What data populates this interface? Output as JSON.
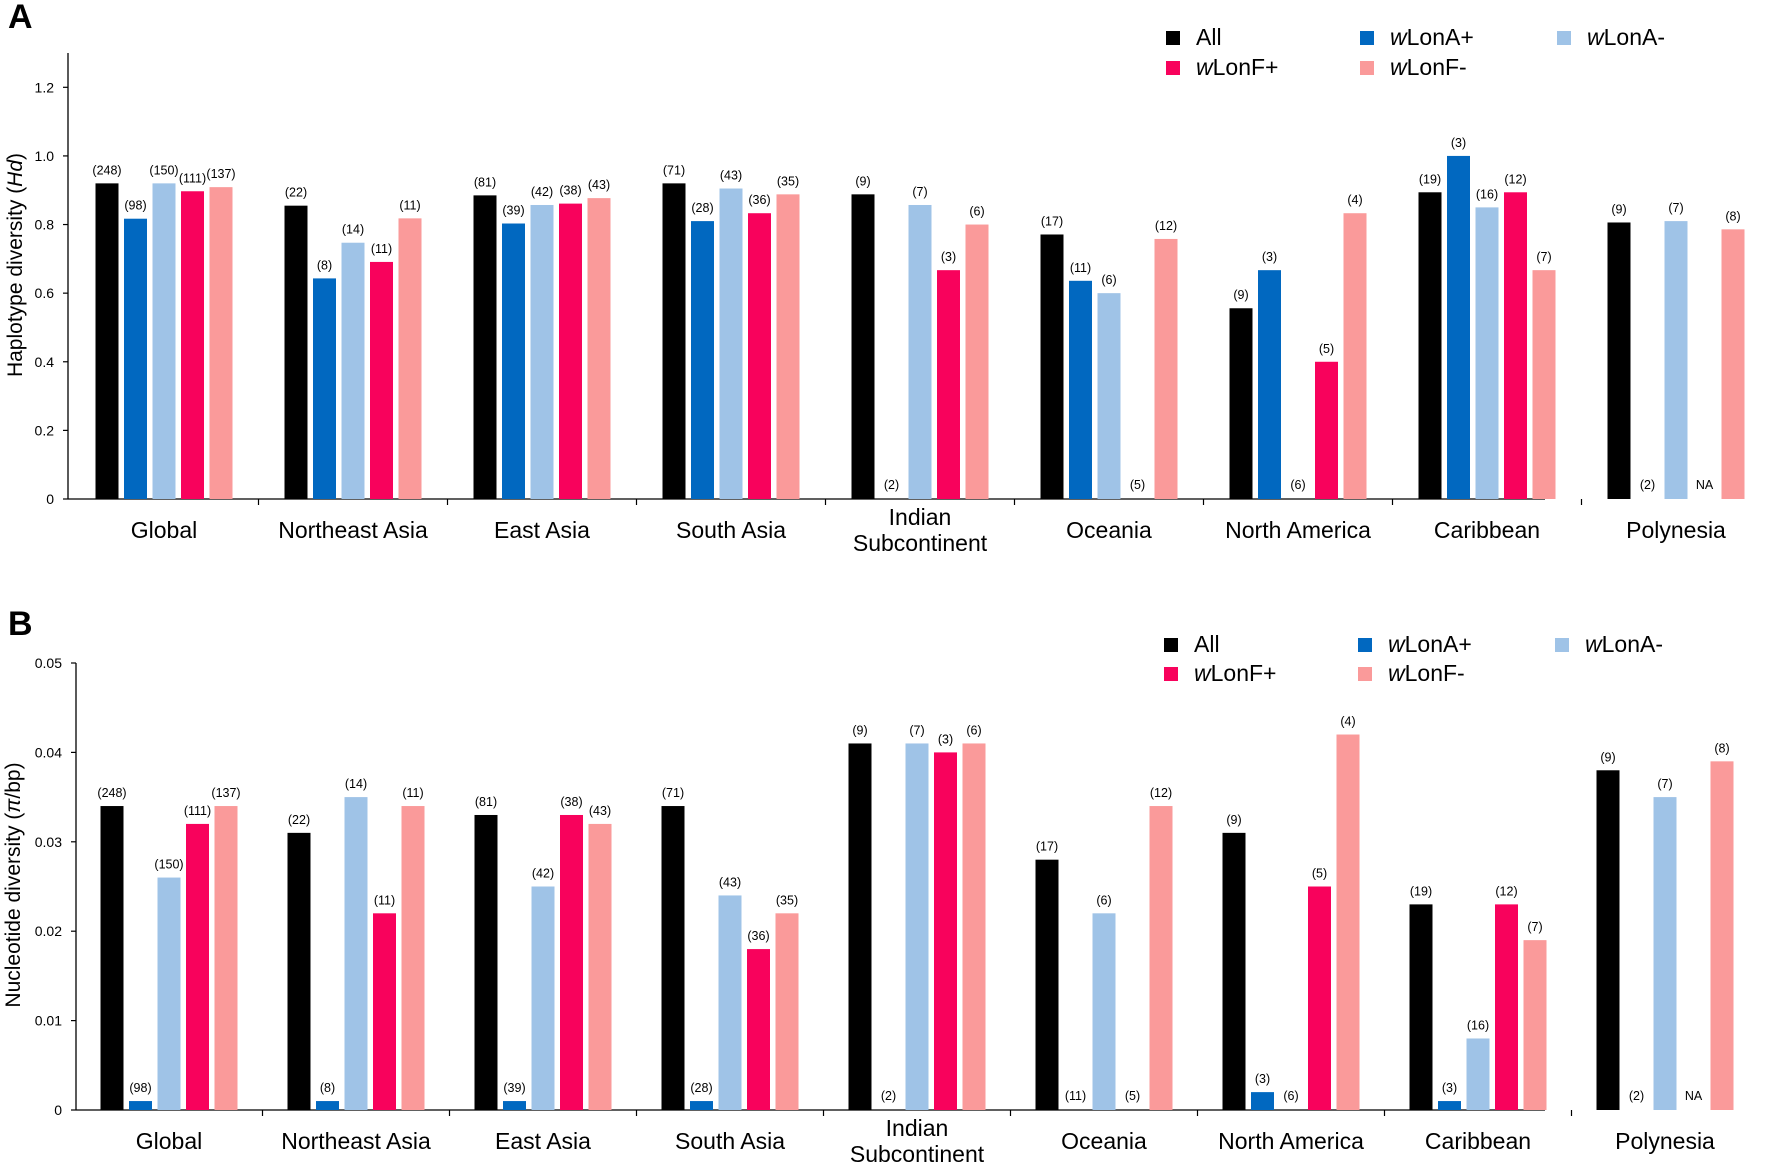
{
  "colors": {
    "All": "#000000",
    "wLonA+": "#0168c0",
    "wLonA-": "#9fc3e7",
    "wLonF+": "#f8025c",
    "wLonF-": "#fa9a9a"
  },
  "legend": [
    {
      "key": "All",
      "prefix": "",
      "rest": "All",
      "icon": "black-square-icon"
    },
    {
      "key": "wLonA+",
      "prefix": "w",
      "rest": "LonA+",
      "icon": "blue-square-icon"
    },
    {
      "key": "wLonA-",
      "prefix": "w",
      "rest": "LonA-",
      "icon": "light-blue-square-icon"
    },
    {
      "key": "wLonF+",
      "prefix": "w",
      "rest": "LonF+",
      "icon": "pink-square-icon"
    },
    {
      "key": "wLonF-",
      "prefix": "w",
      "rest": "LonF-",
      "icon": "light-pink-square-icon"
    }
  ],
  "chart_data": [
    {
      "panel": "A",
      "type": "bar",
      "title": "",
      "ylabel": "Haplotype diversity (Hd)",
      "ylabel_parts": {
        "text": "Haplotype diversity (",
        "italic": "Hd",
        "tail": ")"
      },
      "xlabel": "",
      "ylim": [
        0,
        1.3
      ],
      "yticks": [
        0,
        0.2,
        0.4,
        0.6,
        0.8,
        1.0,
        1.2
      ],
      "ytick_labels": [
        "0",
        "0.2",
        "0.4",
        "0.6",
        "0.8",
        "1.0",
        "1.2"
      ],
      "legend_position": "top-right",
      "grid": false,
      "categories": [
        [
          "Global"
        ],
        [
          "Northeast Asia"
        ],
        [
          "East Asia"
        ],
        [
          "South Asia"
        ],
        [
          "Indian",
          "Subcontinent"
        ],
        [
          "Oceania"
        ],
        [
          "North America"
        ],
        [
          "Caribbean"
        ],
        [
          "Polynesia"
        ]
      ],
      "series": [
        {
          "name": "All",
          "values": [
            0.92,
            0.855,
            0.885,
            0.92,
            0.888,
            0.771,
            0.556,
            0.894,
            0.806
          ],
          "labels": [
            "(248)",
            "(22)",
            "(81)",
            "(71)",
            "(9)",
            "(17)",
            "(9)",
            "(19)",
            "(9)"
          ]
        },
        {
          "name": "wLonA+",
          "values": [
            0.817,
            0.643,
            0.803,
            0.81,
            0,
            0.636,
            0.667,
            1.0,
            0
          ],
          "labels": [
            "(98)",
            "(8)",
            "(39)",
            "(28)",
            "(2)",
            "(11)",
            "(3)",
            "(3)",
            "(2)"
          ]
        },
        {
          "name": "wLonA-",
          "values": [
            0.92,
            0.747,
            0.857,
            0.905,
            0.857,
            0.6,
            0,
            0.85,
            0.81
          ],
          "labels": [
            "(150)",
            "(14)",
            "(42)",
            "(43)",
            "(7)",
            "(6)",
            "(6)",
            "(16)",
            "(7)"
          ]
        },
        {
          "name": "wLonF+",
          "values": [
            0.897,
            0.691,
            0.861,
            0.833,
            0.667,
            0,
            0.4,
            0.894,
            0
          ],
          "labels": [
            "(111)",
            "(11)",
            "(38)",
            "(36)",
            "(3)",
            "(5)",
            "(5)",
            "(12)",
            "NA"
          ]
        },
        {
          "name": "wLonF-",
          "values": [
            0.909,
            0.818,
            0.877,
            0.888,
            0.8,
            0.758,
            0.833,
            0.667,
            0.786
          ],
          "labels": [
            "(137)",
            "(11)",
            "(43)",
            "(35)",
            "(6)",
            "(12)",
            "(4)",
            "(7)",
            "(8)"
          ]
        }
      ]
    },
    {
      "panel": "B",
      "type": "bar",
      "title": "",
      "ylabel": "Nucleotide diversity (π/bp)",
      "ylabel_parts": {
        "text": "Nucleotide diversity (",
        "italic": "π",
        "tail": "/bp)"
      },
      "xlabel": "",
      "ylim": [
        0,
        0.05
      ],
      "yticks": [
        0,
        0.01,
        0.02,
        0.03,
        0.04,
        0.05
      ],
      "ytick_labels": [
        "0",
        "0.01",
        "0.02",
        "0.03",
        "0.04",
        "0.05"
      ],
      "legend_position": "top-right",
      "grid": false,
      "categories": [
        [
          "Global"
        ],
        [
          "Northeast Asia"
        ],
        [
          "East Asia"
        ],
        [
          "South Asia"
        ],
        [
          "Indian",
          "Subcontinent"
        ],
        [
          "Oceania"
        ],
        [
          "North America"
        ],
        [
          "Caribbean"
        ],
        [
          "Polynesia"
        ]
      ],
      "series": [
        {
          "name": "All",
          "values": [
            0.034,
            0.031,
            0.033,
            0.034,
            0.041,
            0.028,
            0.031,
            0.023,
            0.038
          ],
          "labels": [
            "(248)",
            "(22)",
            "(81)",
            "(71)",
            "(9)",
            "(17)",
            "(9)",
            "(19)",
            "(9)"
          ]
        },
        {
          "name": "wLonA+",
          "values": [
            0.001,
            0.001,
            0.001,
            0.001,
            0,
            0,
            0.002,
            0.001,
            0
          ],
          "labels": [
            "(98)",
            "(8)",
            "(39)",
            "(28)",
            "(2)",
            "(11)",
            "(3)",
            "(3)",
            "(2)"
          ]
        },
        {
          "name": "wLonA-",
          "values": [
            0.026,
            0.035,
            0.025,
            0.024,
            0.041,
            0.022,
            0,
            0.008,
            0.035
          ],
          "labels": [
            "(150)",
            "(14)",
            "(42)",
            "(43)",
            "(7)",
            "(6)",
            "(6)",
            "(16)",
            "(7)"
          ]
        },
        {
          "name": "wLonF+",
          "values": [
            0.032,
            0.022,
            0.033,
            0.018,
            0.04,
            0,
            0.025,
            0.023,
            0
          ],
          "labels": [
            "(111)",
            "(11)",
            "(38)",
            "(36)",
            "(3)",
            "(5)",
            "(5)",
            "(12)",
            "NA"
          ]
        },
        {
          "name": "wLonF-",
          "values": [
            0.034,
            0.034,
            0.032,
            0.022,
            0.041,
            0.034,
            0.042,
            0.019,
            0.039
          ],
          "labels": [
            "(137)",
            "(11)",
            "(43)",
            "(35)",
            "(6)",
            "(12)",
            "(4)",
            "(7)",
            "(8)"
          ]
        }
      ]
    }
  ]
}
